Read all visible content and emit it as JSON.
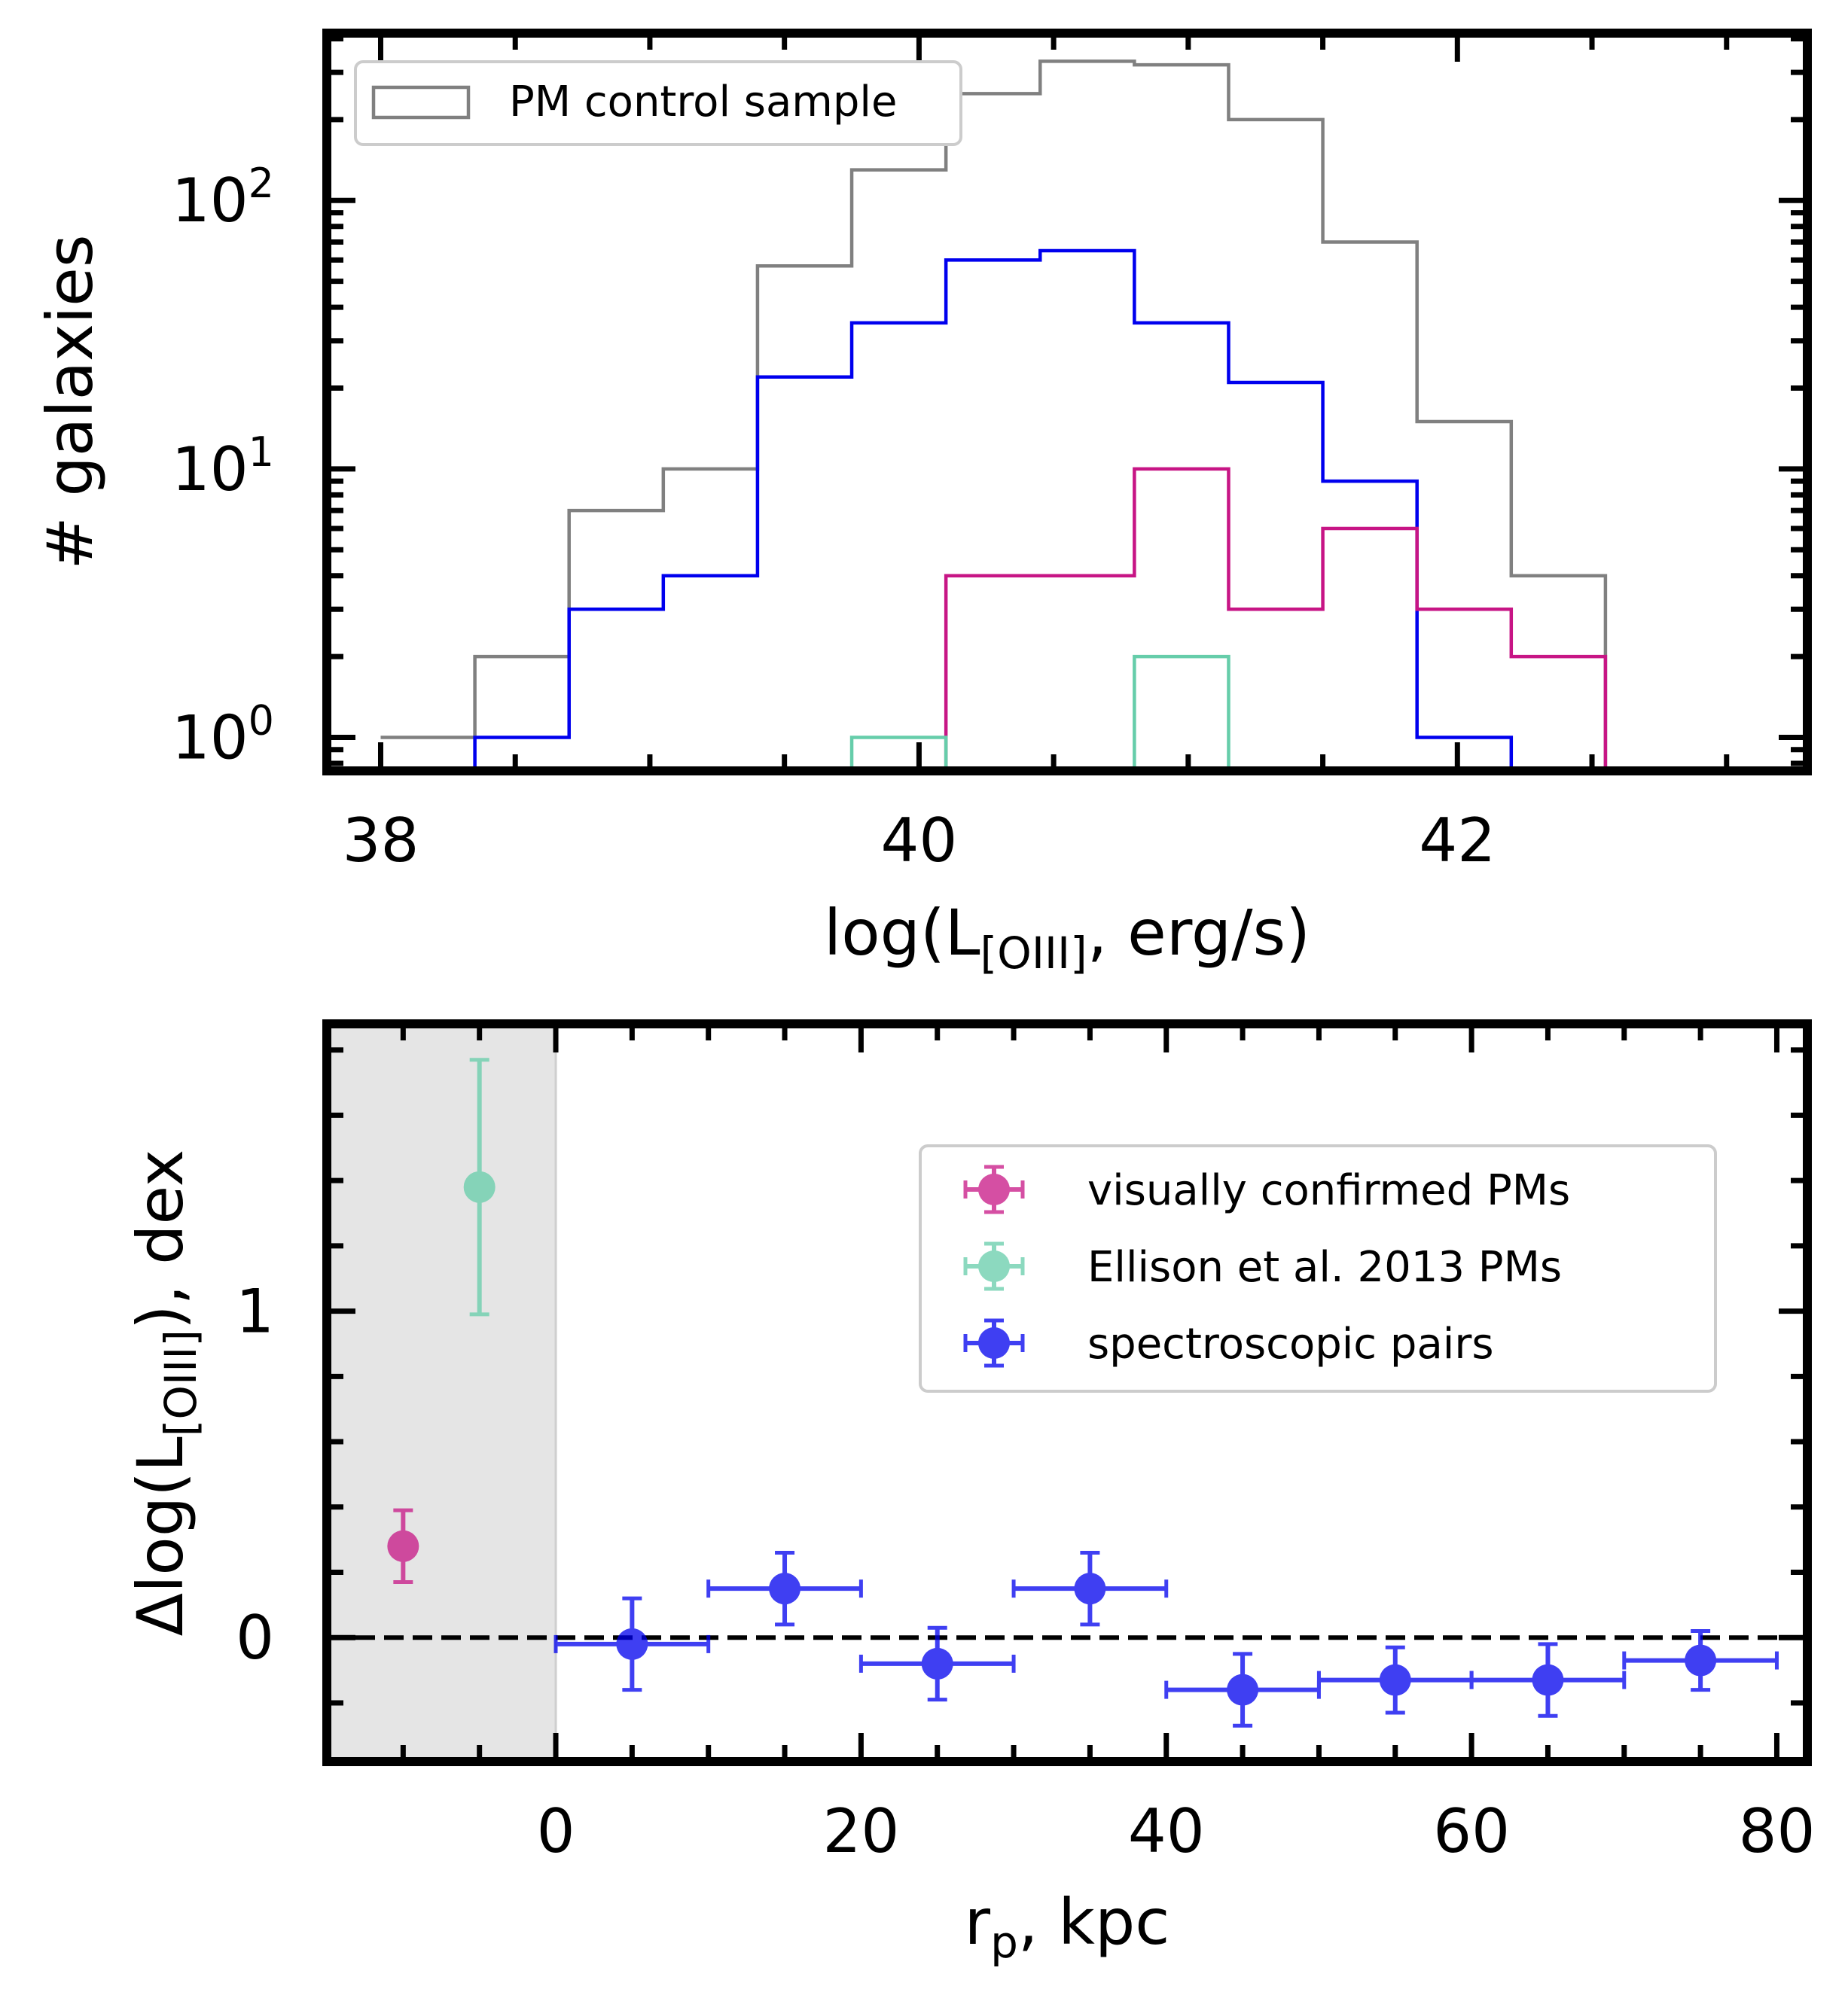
{
  "chart_data": [
    {
      "type": "histogram",
      "xlabel": {
        "main": "log(L",
        "sub": "[OIII]",
        "tail": ", erg/s)"
      },
      "ylabel": "# galaxies",
      "xlim": [
        37.8,
        43.3
      ],
      "ylim": [
        0.75,
        420
      ],
      "yscale": "log",
      "xticks": [
        {
          "v": 38,
          "label": "38"
        },
        {
          "v": 40,
          "label": "40"
        },
        {
          "v": 42,
          "label": "42"
        }
      ],
      "yticks": [
        {
          "v": 1,
          "base": "10",
          "exp": "0"
        },
        {
          "v": 10,
          "base": "10",
          "exp": "1"
        },
        {
          "v": 100,
          "base": "10",
          "exp": "2"
        }
      ],
      "legend": {
        "position": "upper-left",
        "entries": [
          "PM control sample"
        ]
      },
      "bins": [
        38.0,
        38.35,
        38.7,
        39.05,
        39.4,
        39.75,
        40.1,
        40.45,
        40.8,
        41.15,
        41.5,
        41.85,
        42.2,
        42.55
      ],
      "series": [
        {
          "name": "PM control sample",
          "color": "#808080",
          "counts": [
            1,
            2,
            7,
            10,
            57,
            130,
            250,
            330,
            320,
            200,
            70,
            15,
            4,
            0
          ]
        },
        {
          "color": "#0000ee",
          "counts": [
            0,
            1,
            3,
            4,
            22,
            35,
            60,
            65,
            35,
            21,
            9,
            1,
            0,
            0
          ]
        },
        {
          "color": "#c71585",
          "counts": [
            0,
            0,
            0,
            0,
            0,
            0,
            4,
            4,
            10,
            3,
            6,
            3,
            2,
            0
          ]
        },
        {
          "color": "#66cdaa",
          "counts": [
            0,
            0,
            0,
            0,
            0,
            1,
            0,
            0,
            2,
            0,
            0,
            0,
            0,
            0
          ]
        }
      ]
    },
    {
      "type": "scatter",
      "xlabel": {
        "main": "r",
        "sub": "p",
        "tail": ", kpc"
      },
      "ylabel": {
        "main": "Δlog(L",
        "sub": "[OIII]",
        "tail": "), dex"
      },
      "xlim": [
        -15,
        82
      ],
      "ylim": [
        -0.38,
        1.88
      ],
      "xticks": [
        {
          "v": 0,
          "label": "0"
        },
        {
          "v": 20,
          "label": "20"
        },
        {
          "v": 40,
          "label": "40"
        },
        {
          "v": 60,
          "label": "60"
        },
        {
          "v": 80,
          "label": "80"
        }
      ],
      "yticks": [
        {
          "v": 0,
          "label": "0"
        },
        {
          "v": 1,
          "label": "1"
        }
      ],
      "shaded_region": {
        "x0": -15,
        "x1": 0,
        "color": "#e5e5e5"
      },
      "reference_line": {
        "y": 0,
        "style": "dashed"
      },
      "legend": {
        "position": "upper-right"
      },
      "series": [
        {
          "name": "visually confirmed PMs",
          "color": "#c71585",
          "points": [
            {
              "x": -10,
              "y": 0.28,
              "yerr": 0.11,
              "xerr": 0
            }
          ]
        },
        {
          "name": "Ellison et al. 2013 PMs",
          "color": "#66cdaa",
          "points": [
            {
              "x": -5,
              "y": 1.38,
              "yerr": 0.39,
              "xerr": 0
            }
          ]
        },
        {
          "name": "spectroscopic pairs",
          "color": "#0000ee",
          "points": [
            {
              "x": 5,
              "y": -0.02,
              "yerr": 0.14,
              "xerr": 5
            },
            {
              "x": 15,
              "y": 0.15,
              "yerr": 0.11,
              "xerr": 5
            },
            {
              "x": 25,
              "y": -0.08,
              "yerr": 0.11,
              "xerr": 5
            },
            {
              "x": 35,
              "y": 0.15,
              "yerr": 0.11,
              "xerr": 5
            },
            {
              "x": 45,
              "y": -0.16,
              "yerr": 0.11,
              "xerr": 5
            },
            {
              "x": 55,
              "y": -0.13,
              "yerr": 0.1,
              "xerr": 5
            },
            {
              "x": 65,
              "y": -0.13,
              "yerr": 0.11,
              "xerr": 5
            },
            {
              "x": 75,
              "y": -0.07,
              "yerr": 0.09,
              "xerr": 5
            }
          ]
        }
      ]
    }
  ]
}
